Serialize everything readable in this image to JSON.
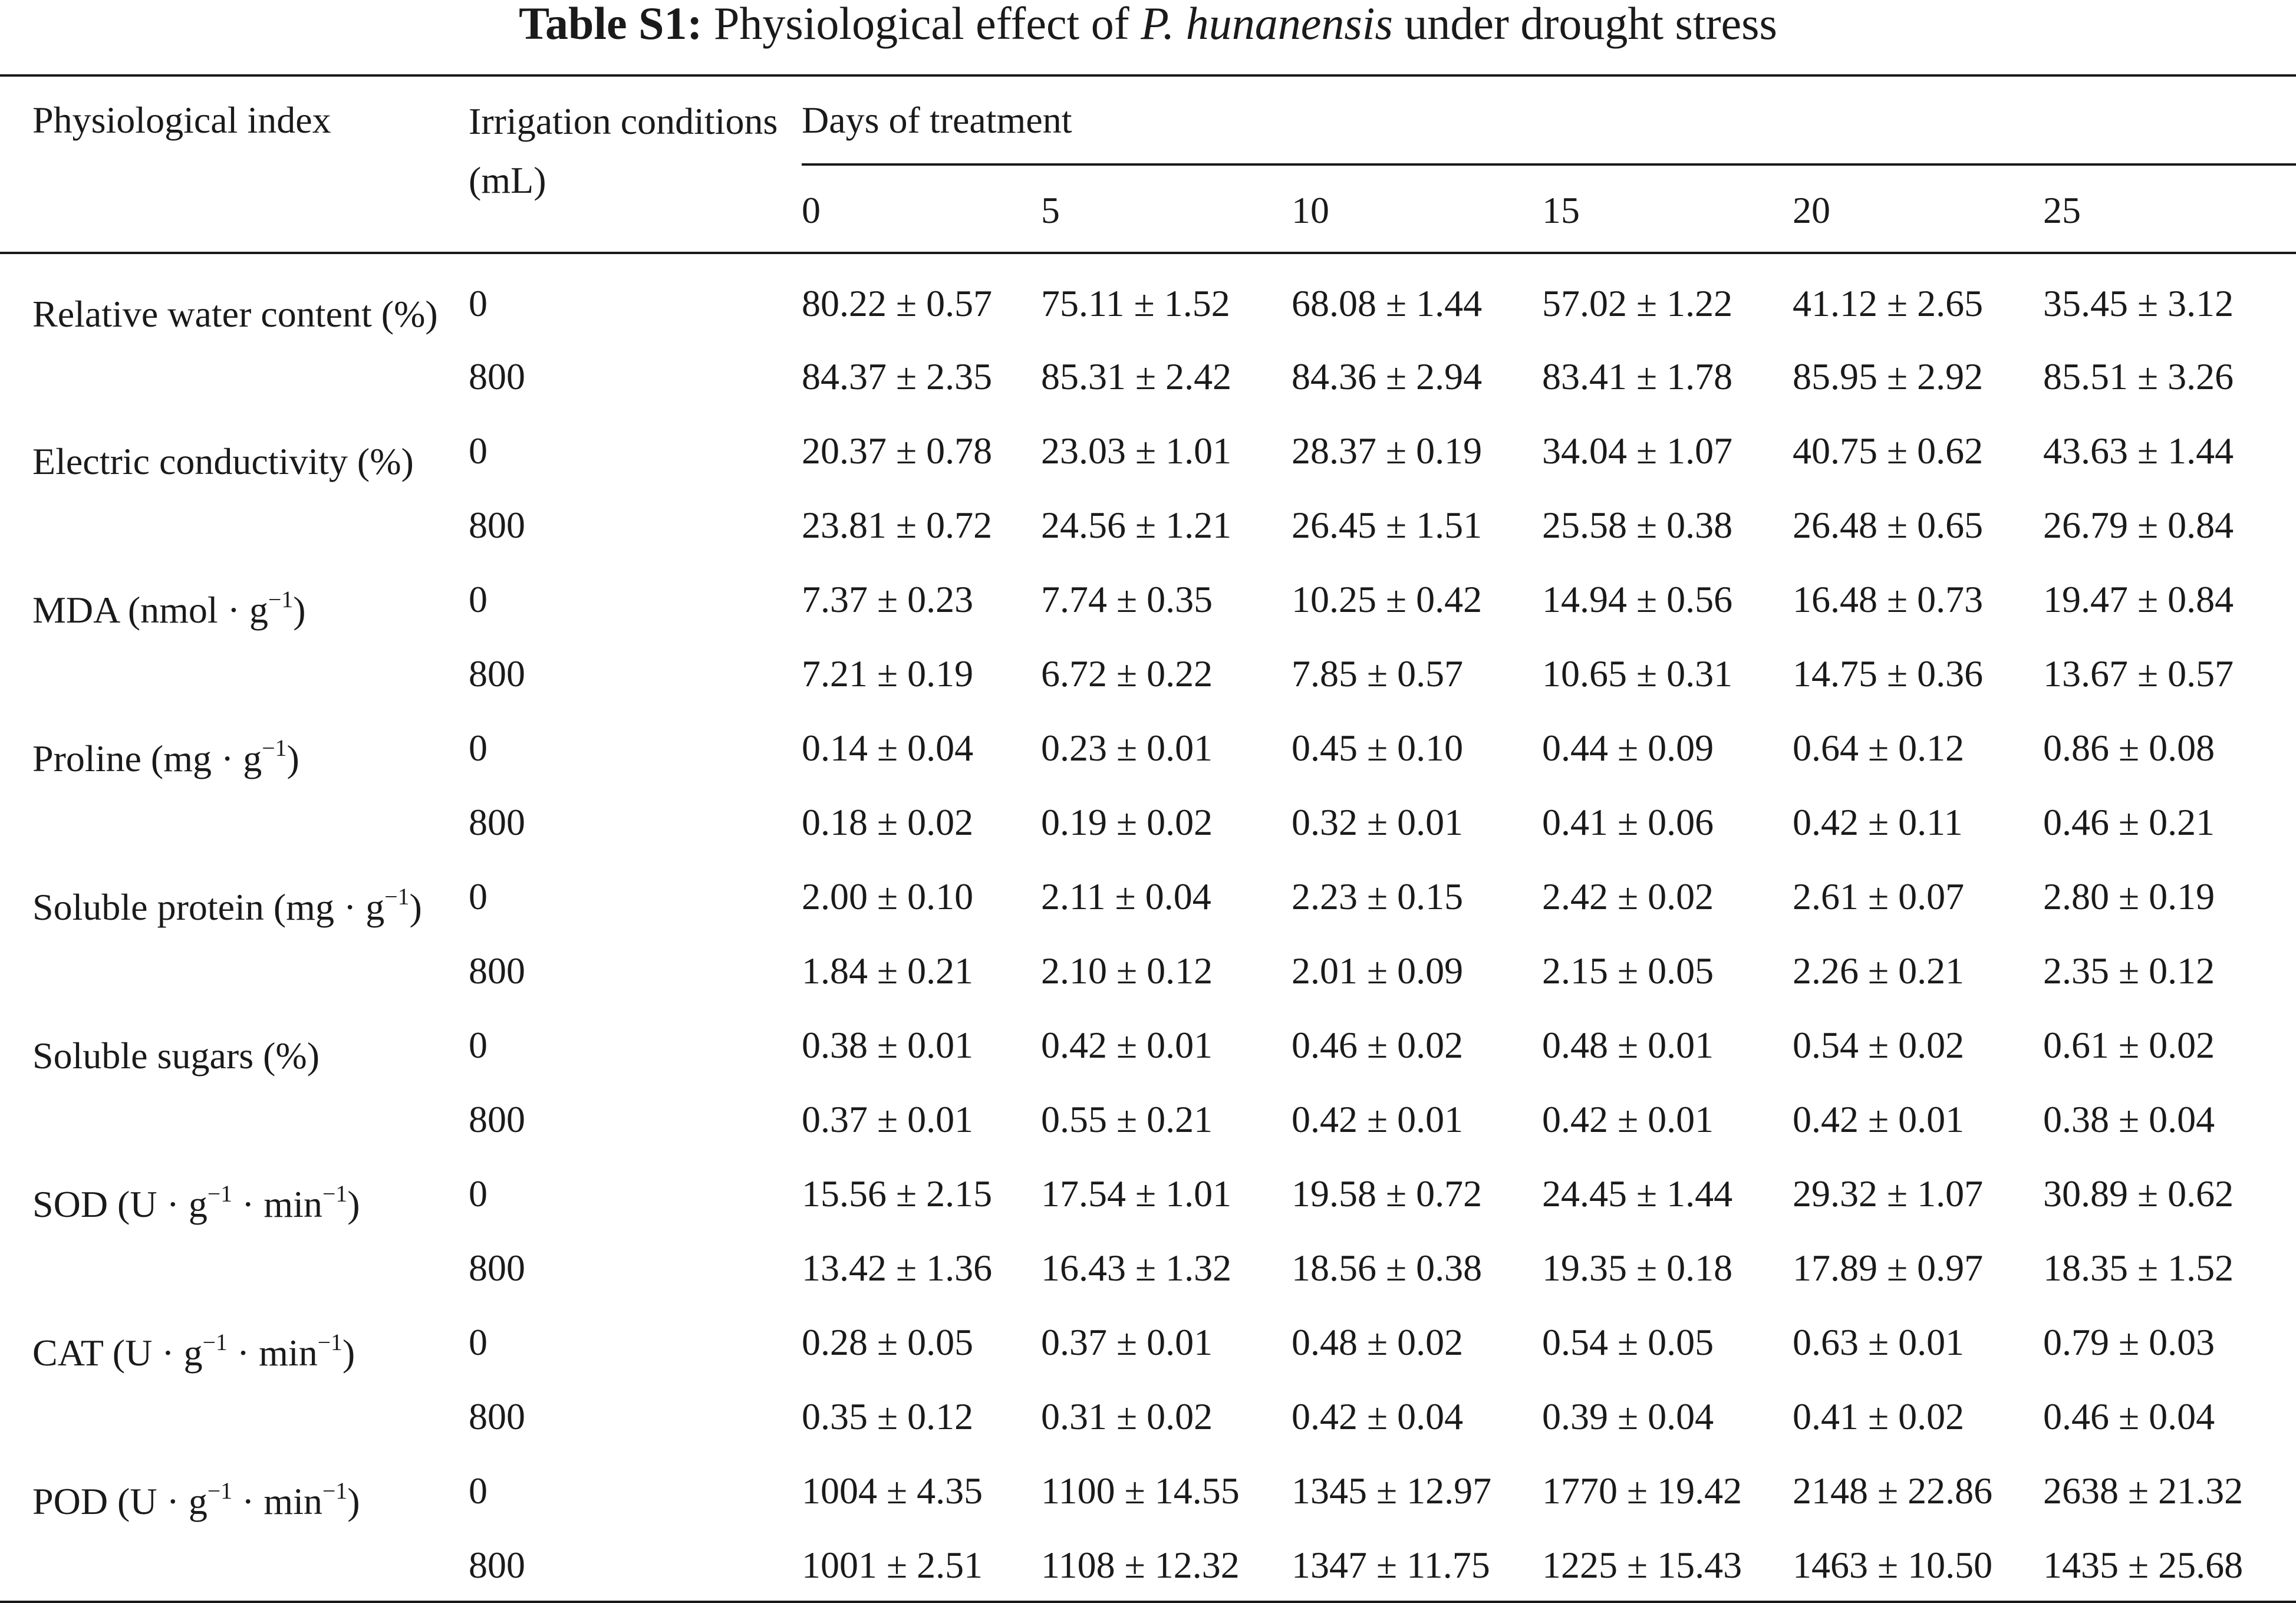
{
  "caption": {
    "label": "Table S1:",
    "prefix": "Physiological effect of",
    "species": "P. hunanensis",
    "suffix": "under drought stress"
  },
  "headers": {
    "index": "Physiological index",
    "irrigation": "Irrigation conditions (mL)",
    "days_group": "Days of treatment",
    "days": [
      "0",
      "5",
      "10",
      "15",
      "20",
      "25"
    ]
  },
  "indices": [
    {
      "name": "Relative water content (%)",
      "rows": [
        {
          "irrigation": "0",
          "values": [
            "80.22 ± 0.57",
            "75.11 ± 1.52",
            "68.08 ± 1.44",
            "57.02 ± 1.22",
            "41.12 ± 2.65",
            "35.45 ± 3.12"
          ]
        },
        {
          "irrigation": "800",
          "values": [
            "84.37 ± 2.35",
            "85.31 ± 2.42",
            "84.36 ± 2.94",
            "83.41 ± 1.78",
            "85.95 ± 2.92",
            "85.51 ± 3.26"
          ]
        }
      ]
    },
    {
      "name": "Electric conductivity (%)",
      "rows": [
        {
          "irrigation": "0",
          "values": [
            "20.37 ± 0.78",
            "23.03 ± 1.01",
            "28.37 ± 0.19",
            "34.04 ± 1.07",
            "40.75 ± 0.62",
            "43.63 ± 1.44"
          ]
        },
        {
          "irrigation": "800",
          "values": [
            "23.81 ± 0.72",
            "24.56 ± 1.21",
            "26.45 ± 1.51",
            "25.58 ± 0.38",
            "26.48 ± 0.65",
            "26.79 ± 0.84"
          ]
        }
      ]
    },
    {
      "name": "MDA (nmol · g",
      "name_sup": "−1",
      "name_tail": ")",
      "rows": [
        {
          "irrigation": "0",
          "values": [
            "7.37 ± 0.23",
            "7.74 ± 0.35",
            "10.25 ± 0.42",
            "14.94 ± 0.56",
            "16.48 ± 0.73",
            "19.47 ± 0.84"
          ]
        },
        {
          "irrigation": "800",
          "values": [
            "7.21 ± 0.19",
            "6.72 ± 0.22",
            "7.85 ± 0.57",
            "10.65 ± 0.31",
            "14.75 ± 0.36",
            "13.67 ± 0.57"
          ]
        }
      ]
    },
    {
      "name": "Proline (mg · g",
      "name_sup": "−1",
      "name_tail": ")",
      "rows": [
        {
          "irrigation": "0",
          "values": [
            "0.14 ± 0.04",
            "0.23 ± 0.01",
            "0.45 ± 0.10",
            "0.44 ± 0.09",
            "0.64 ± 0.12",
            "0.86 ± 0.08"
          ]
        },
        {
          "irrigation": "800",
          "values": [
            "0.18 ± 0.02",
            "0.19 ± 0.02",
            "0.32 ± 0.01",
            "0.41 ± 0.06",
            "0.42 ± 0.11",
            "0.46 ± 0.21"
          ]
        }
      ]
    },
    {
      "name": "Soluble protein (mg · g",
      "name_sup": "−1",
      "name_tail": ")",
      "rows": [
        {
          "irrigation": "0",
          "values": [
            "2.00 ± 0.10",
            "2.11 ± 0.04",
            "2.23 ± 0.15",
            "2.42 ± 0.02",
            "2.61 ± 0.07",
            "2.80 ± 0.19"
          ]
        },
        {
          "irrigation": "800",
          "values": [
            "1.84 ± 0.21",
            "2.10 ± 0.12",
            "2.01 ± 0.09",
            "2.15 ± 0.05",
            "2.26 ± 0.21",
            "2.35 ± 0.12"
          ]
        }
      ]
    },
    {
      "name": "Soluble sugars (%)",
      "rows": [
        {
          "irrigation": "0",
          "values": [
            "0.38 ± 0.01",
            "0.42 ± 0.01",
            "0.46 ± 0.02",
            "0.48 ± 0.01",
            "0.54 ± 0.02",
            "0.61 ± 0.02"
          ]
        },
        {
          "irrigation": "800",
          "values": [
            "0.37 ± 0.01",
            "0.55 ± 0.21",
            "0.42 ± 0.01",
            "0.42 ± 0.01",
            "0.42 ± 0.01",
            "0.38 ± 0.04"
          ]
        }
      ]
    },
    {
      "name": "SOD (U · g",
      "name_sup": "−1",
      "name_mid": " · min",
      "name_sup2": "−1",
      "name_tail": ")",
      "rows": [
        {
          "irrigation": "0",
          "values": [
            "15.56 ± 2.15",
            "17.54 ± 1.01",
            "19.58 ± 0.72",
            "24.45 ± 1.44",
            "29.32 ± 1.07",
            "30.89 ± 0.62"
          ]
        },
        {
          "irrigation": "800",
          "values": [
            "13.42 ± 1.36",
            "16.43 ± 1.32",
            "18.56 ± 0.38",
            "19.35 ± 0.18",
            "17.89 ± 0.97",
            "18.35 ± 1.52"
          ]
        }
      ]
    },
    {
      "name": "CAT (U · g",
      "name_sup": "−1",
      "name_mid": " · min",
      "name_sup2": "−1",
      "name_tail": ")",
      "rows": [
        {
          "irrigation": "0",
          "values": [
            "0.28 ± 0.05",
            "0.37 ± 0.01",
            "0.48 ± 0.02",
            "0.54 ± 0.05",
            "0.63 ± 0.01",
            "0.79 ± 0.03"
          ]
        },
        {
          "irrigation": "800",
          "values": [
            "0.35 ± 0.12",
            "0.31 ± 0.02",
            "0.42 ± 0.04",
            "0.39 ± 0.04",
            "0.41 ± 0.02",
            "0.46 ± 0.04"
          ]
        }
      ]
    },
    {
      "name": "POD (U · g",
      "name_sup": "−1",
      "name_mid": " · min",
      "name_sup2": "−1",
      "name_tail": ")",
      "rows": [
        {
          "irrigation": "0",
          "values": [
            "1004 ± 4.35",
            "1100 ± 14.55",
            "1345 ± 12.97",
            "1770 ± 19.42",
            "2148 ± 22.86",
            "2638 ± 21.32"
          ]
        },
        {
          "irrigation": "800",
          "values": [
            "1001 ± 2.51",
            "1108 ± 12.32",
            "1347 ± 11.75",
            "1225 ± 15.43",
            "1463 ± 10.50",
            "1435 ± 25.68"
          ]
        }
      ]
    }
  ]
}
